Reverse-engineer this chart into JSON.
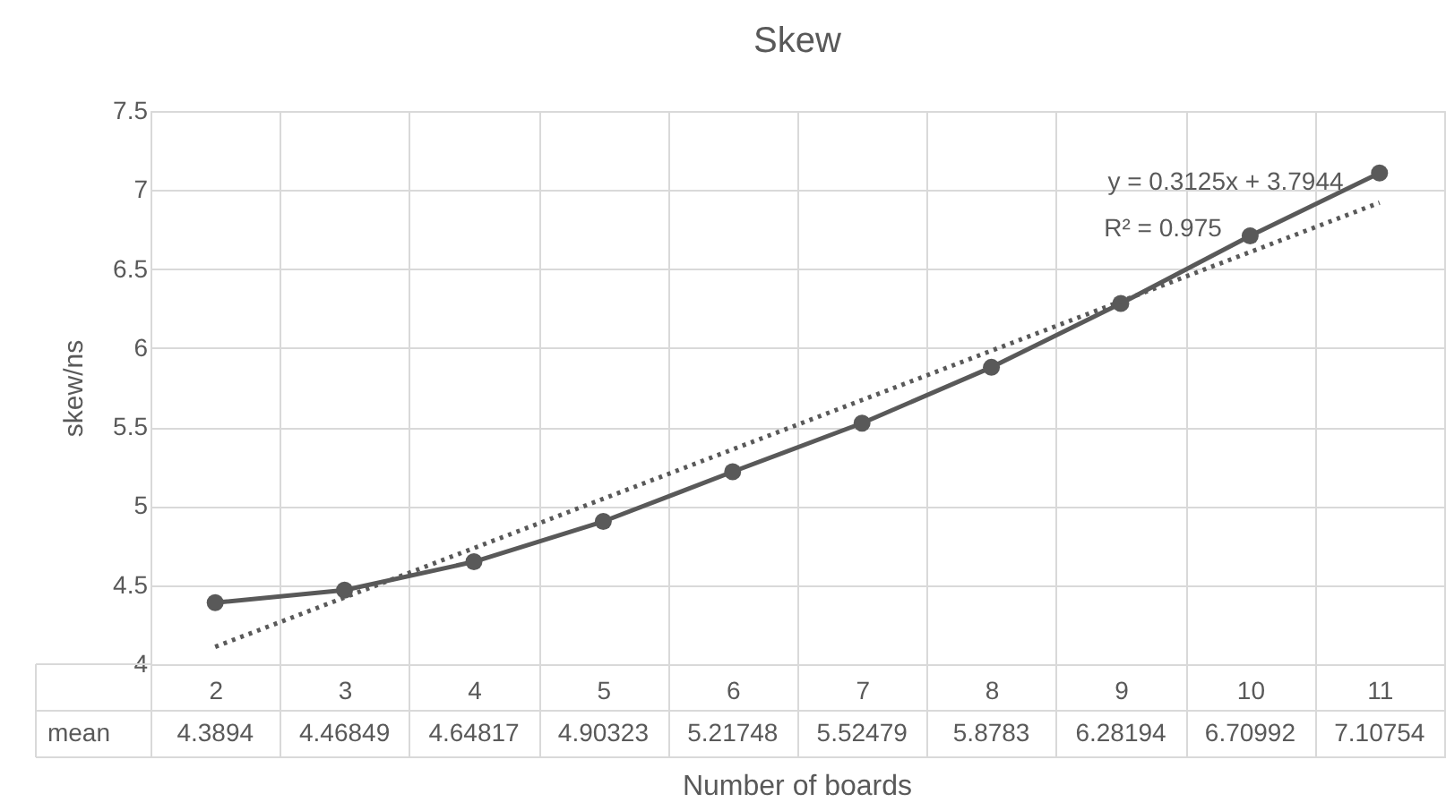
{
  "chart_data": {
    "type": "line",
    "title": "Skew",
    "xlabel": "Number of boards",
    "ylabel": "skew/ns",
    "categories": [
      "2",
      "3",
      "4",
      "5",
      "6",
      "7",
      "8",
      "9",
      "10",
      "11"
    ],
    "ylim": [
      4,
      7.5
    ],
    "yticks": [
      4,
      4.5,
      5,
      5.5,
      6,
      6.5,
      7,
      7.5
    ],
    "grid": true,
    "marker": "circle",
    "line_style": "solid",
    "series": [
      {
        "name": "mean",
        "color": "#595959",
        "values": [
          4.3894,
          4.46849,
          4.64817,
          4.90323,
          5.21748,
          5.52479,
          5.8783,
          6.28194,
          6.70992,
          7.10754
        ],
        "value_labels": [
          "4.3894",
          "4.46849",
          "4.64817",
          "4.90323",
          "5.21748",
          "5.52479",
          "5.8783",
          "6.28194",
          "6.70992",
          "7.10754"
        ]
      },
      {
        "type": "line",
        "x": [
          "2",
          "11"
        ],
        "values": [
          4.11,
          6.92
        ],
        "color": "#595959",
        "line_style": "dotted",
        "marker": "none"
      }
    ],
    "annotations": [
      "y = 0.3125x + 3.7944",
      "R² = 0.975"
    ]
  }
}
